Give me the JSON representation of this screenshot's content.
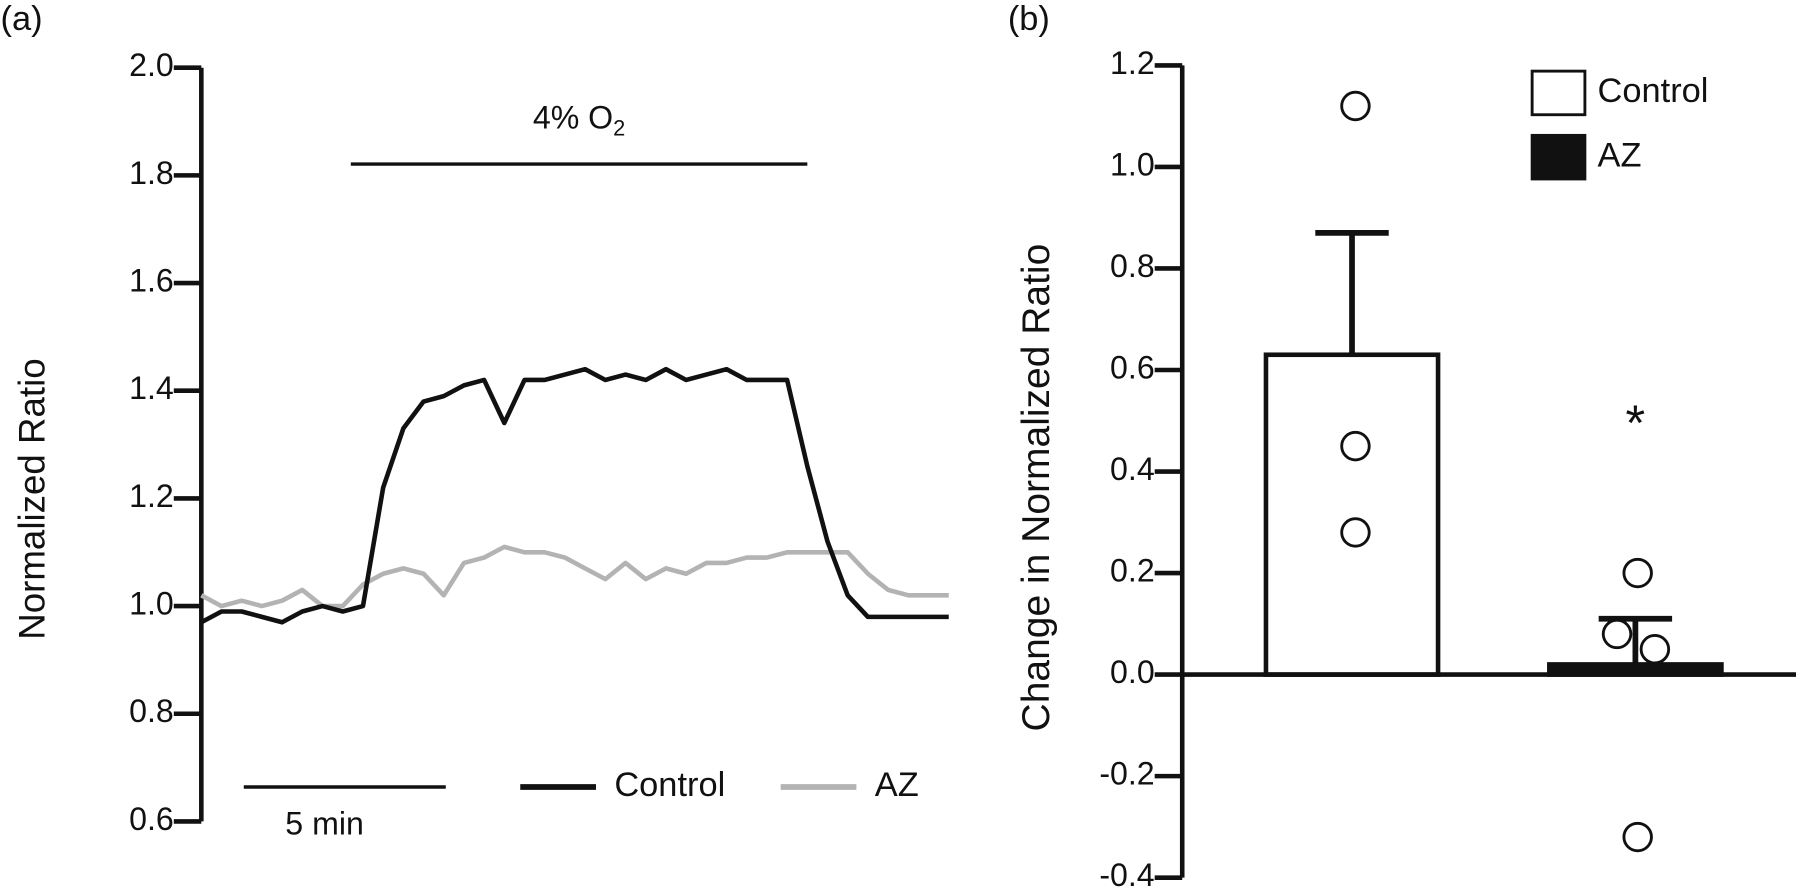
{
  "chart_data": [
    {
      "type": "line",
      "panel": "(a)",
      "ylabel": "Normalized Ratio",
      "ylim": [
        0.6,
        2.0
      ],
      "yticks": [
        0.6,
        0.8,
        {
          "value": 1,
          "label": "1.0"
        },
        1.2,
        1.4,
        1.6,
        1.8,
        {
          "value": 2,
          "label": "2.0"
        }
      ],
      "xlim": [
        0,
        18.6
      ],
      "x": [
        0,
        0.5,
        1,
        1.5,
        2,
        2.5,
        3,
        3.5,
        4,
        4.5,
        5,
        5.5,
        6,
        6.5,
        7,
        7.5,
        8,
        8.5,
        9,
        9.5,
        10,
        10.5,
        11,
        11.5,
        12,
        12.5,
        13,
        13.5,
        14,
        14.5,
        15,
        15.5,
        16,
        16.5,
        17,
        17.5,
        18,
        18.5
      ],
      "series": [
        {
          "name": "Control",
          "color": "#111111",
          "values": [
            0.97,
            0.99,
            0.99,
            0.98,
            0.97,
            0.99,
            1.0,
            0.99,
            1.0,
            1.22,
            1.33,
            1.38,
            1.39,
            1.41,
            1.42,
            1.34,
            1.42,
            1.42,
            1.43,
            1.44,
            1.42,
            1.43,
            1.42,
            1.44,
            1.42,
            1.43,
            1.44,
            1.42,
            1.42,
            1.42,
            1.26,
            1.12,
            1.02,
            0.98,
            0.98,
            0.98,
            0.98,
            0.98
          ]
        },
        {
          "name": "AZ",
          "color": "#b3b3b3",
          "values": [
            1.02,
            1.0,
            1.01,
            1.0,
            1.01,
            1.03,
            1.0,
            1.0,
            1.04,
            1.06,
            1.07,
            1.06,
            1.02,
            1.08,
            1.09,
            1.11,
            1.1,
            1.1,
            1.09,
            1.07,
            1.05,
            1.08,
            1.05,
            1.07,
            1.06,
            1.08,
            1.08,
            1.09,
            1.09,
            1.1,
            1.1,
            1.1,
            1.1,
            1.06,
            1.03,
            1.02,
            1.02,
            1.02
          ]
        }
      ],
      "annotation": {
        "text": "4% O",
        "subscript": "2",
        "start": 3.7,
        "end": 15.0
      },
      "scale_bar": {
        "label": "5 min",
        "length": 5
      }
    },
    {
      "type": "bar",
      "panel": "(b)",
      "ylabel": "Change in Normalized Ratio",
      "ylim": [
        -0.4,
        1.2
      ],
      "yticks": [
        -0.4,
        -0.2,
        {
          "value": 0,
          "label": "0.0"
        },
        0.2,
        0.4,
        0.6,
        0.8,
        {
          "value": 1,
          "label": "1.0"
        },
        1.2
      ],
      "series": [
        {
          "name": "Control",
          "color": "#ffffff",
          "value": 0.63,
          "error": 0.24,
          "points": [
            1.12,
            0.45,
            0.28
          ]
        },
        {
          "name": "AZ",
          "color": "#111111",
          "value": 0.02,
          "error": 0.09,
          "points": [
            0.2,
            0.08,
            0.05,
            -0.32
          ],
          "label": "*"
        }
      ]
    }
  ]
}
